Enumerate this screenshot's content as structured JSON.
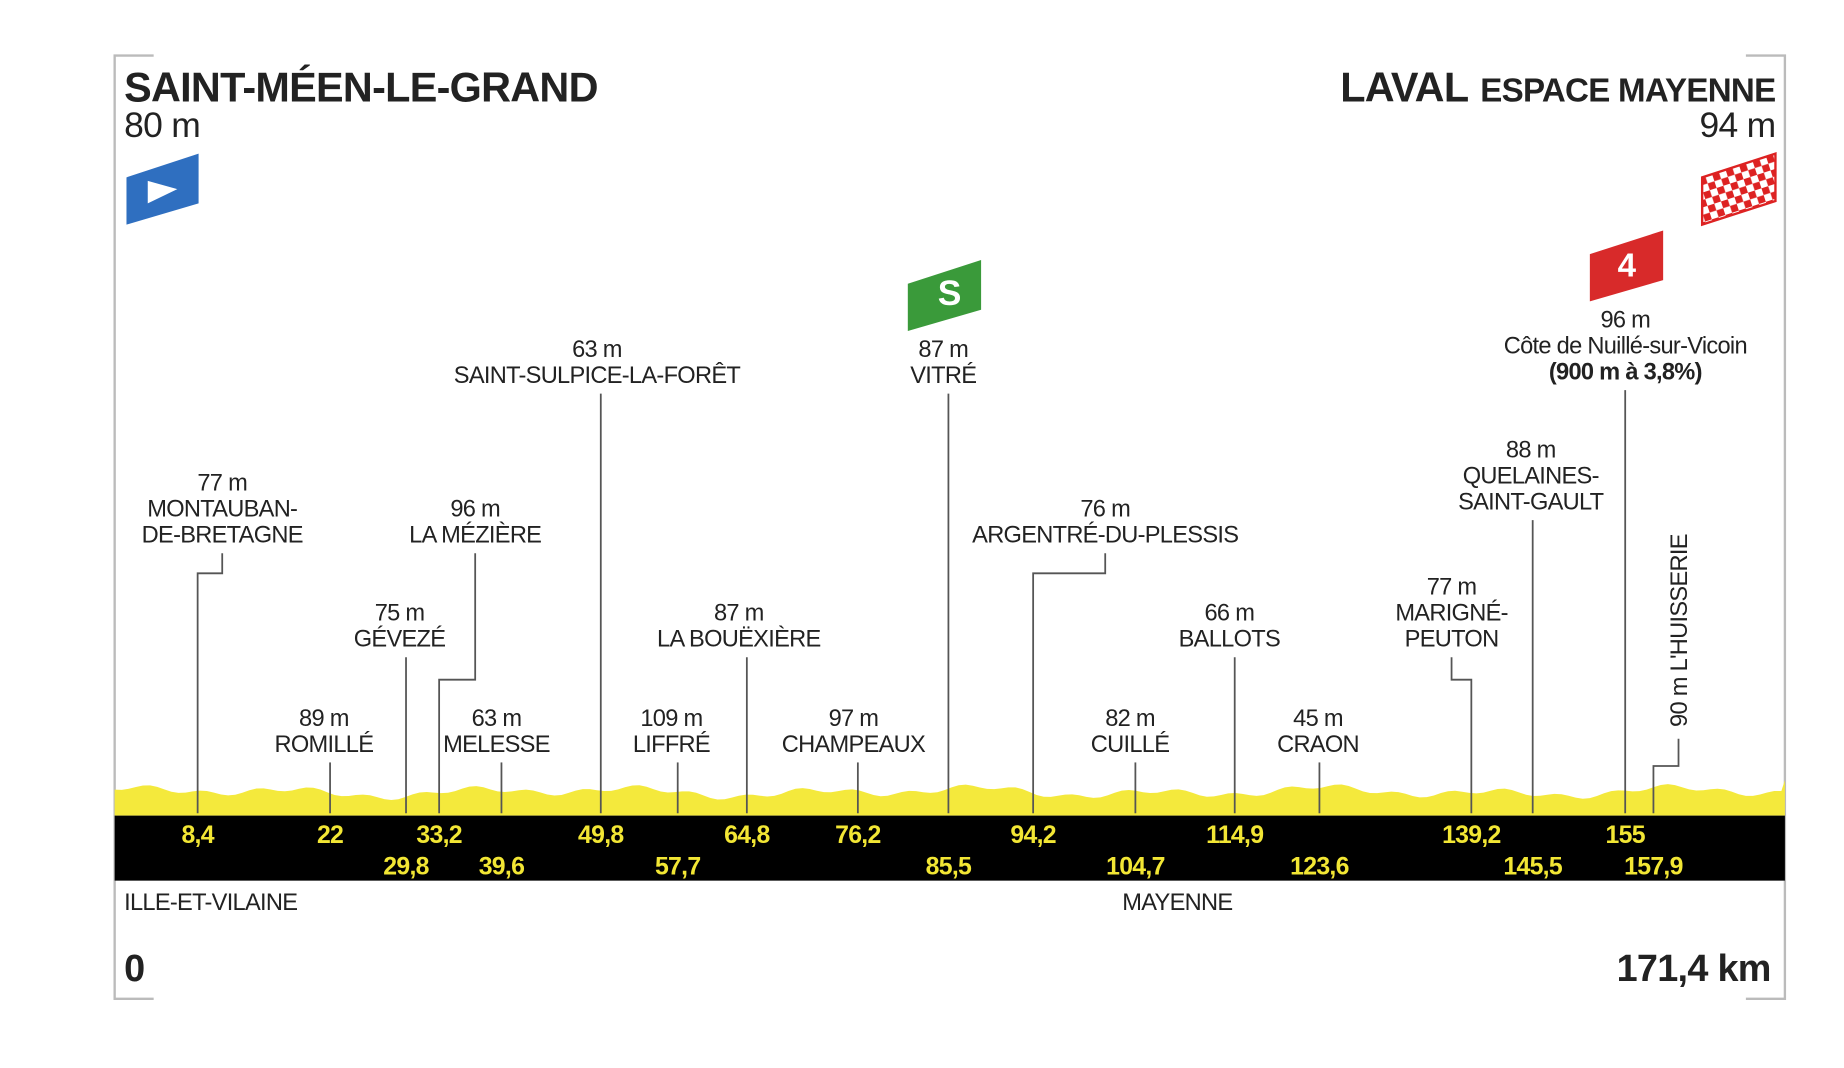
{
  "start": {
    "name": "SAINT-MÉEN-LE-GRAND",
    "altitude": "80 m"
  },
  "finish": {
    "name": "LAVAL",
    "subname": "ESPACE MAYENNE",
    "altitude": "94 m"
  },
  "sprint_icon": "S",
  "kom_icon": "4",
  "distance": {
    "start": {
      "value": 0,
      "label": "0"
    },
    "end": {
      "value": 171.4,
      "label": "171,4 km"
    }
  },
  "regions": [
    "ILLE-ET-VILAINE",
    "MAYENNE"
  ],
  "points": [
    {
      "km": {
        "value": 8.4,
        "label": "8,4"
      },
      "lines": [
        "77 m",
        "MONTAUBAN-",
        "DE-BRETAGNE"
      ]
    },
    {
      "km": {
        "value": 22,
        "label": "22"
      },
      "lines": [
        "89 m",
        "ROMILLÉ"
      ]
    },
    {
      "km": {
        "value": 29.8,
        "label": "29,8"
      },
      "lines": [
        "75 m",
        "GÉVEZÉ"
      ]
    },
    {
      "km": {
        "value": 33.2,
        "label": "33,2"
      },
      "lines": [
        "96 m",
        "LA MÉZIÈRE"
      ]
    },
    {
      "km": {
        "value": 39.6,
        "label": "39,6"
      },
      "lines": [
        "63 m",
        "MELESSE"
      ]
    },
    {
      "km": {
        "value": 49.8,
        "label": "49,8"
      },
      "lines": [
        "63 m",
        "SAINT-SULPICE-LA-FORÊT"
      ]
    },
    {
      "km": {
        "value": 57.7,
        "label": "57,7"
      },
      "lines": [
        "109 m",
        "LIFFRÉ"
      ]
    },
    {
      "km": {
        "value": 64.8,
        "label": "64,8"
      },
      "lines": [
        "87 m",
        "LA BOUËXIÈRE"
      ]
    },
    {
      "km": {
        "value": 76.2,
        "label": "76,2"
      },
      "lines": [
        "97 m",
        "CHAMPEAUX"
      ]
    },
    {
      "km": {
        "value": 85.5,
        "label": "85,5"
      },
      "lines": [
        "87 m",
        "VITRÉ"
      ]
    },
    {
      "km": {
        "value": 94.2,
        "label": "94,2"
      },
      "lines": [
        "76 m",
        "ARGENTRÉ-DU-PLESSIS"
      ]
    },
    {
      "km": {
        "value": 104.7,
        "label": "104,7"
      },
      "lines": [
        "82 m",
        "CUILLÉ"
      ]
    },
    {
      "km": {
        "value": 114.9,
        "label": "114,9"
      },
      "lines": [
        "66 m",
        "BALLOTS"
      ]
    },
    {
      "km": {
        "value": 123.6,
        "label": "123,6"
      },
      "lines": [
        "45 m",
        "CRAON"
      ]
    },
    {
      "km": {
        "value": 139.2,
        "label": "139,2"
      },
      "lines": [
        "77 m",
        "MARIGNÉ-",
        "PEUTON"
      ]
    },
    {
      "km": {
        "value": 145.5,
        "label": "145,5"
      },
      "lines": [
        "88 m",
        "QUELAINES-",
        "SAINT-GAULT"
      ]
    },
    {
      "km": {
        "value": 155,
        "label": "155"
      },
      "lines": [
        "96 m",
        "Côte de Nuillé-sur-Vicoin",
        "(900 m à 3,8%)"
      ]
    },
    {
      "km": {
        "value": 157.9,
        "label": "157,9"
      },
      "lines": [
        "90 m L'HUISSERIE"
      ]
    }
  ]
}
